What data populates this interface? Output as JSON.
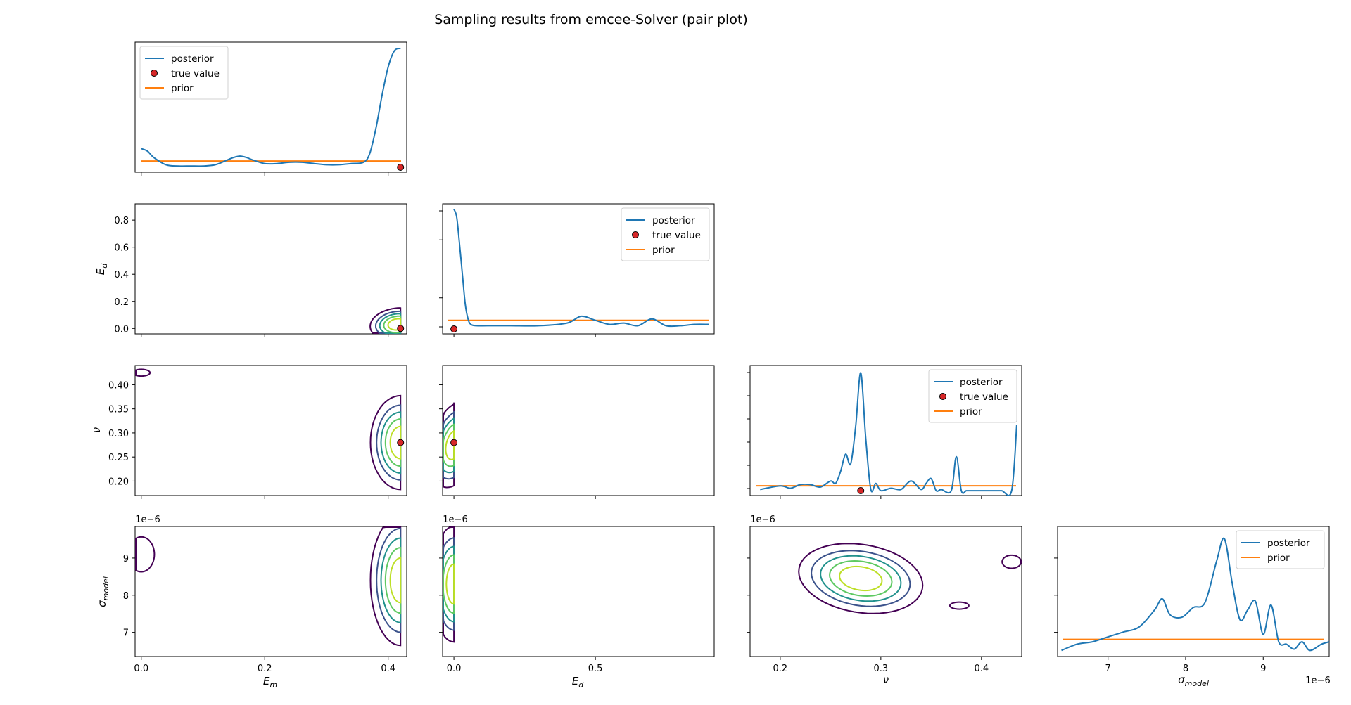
{
  "title": "Sampling results from emcee-Solver (pair plot)",
  "colors": {
    "posterior": "#1f77b4",
    "prior": "#ff7f0e",
    "true_value": "#d62728",
    "axes": "#000000",
    "contour_levels": [
      "#440154",
      "#3b528b",
      "#21918c",
      "#5ec962",
      "#bddf26"
    ]
  },
  "legend_labels": {
    "posterior": "posterior",
    "true_value": "true value",
    "prior": "prior"
  },
  "axis_labels": {
    "Em": "E",
    "Em_sub": "m",
    "Ed": "E",
    "Ed_sub": "d",
    "nu": "ν",
    "sigma": "σ",
    "sigma_sub": "model"
  },
  "offset_text": "1e−6",
  "ticks": {
    "Em": [
      "0.0",
      "0.2",
      "0.4"
    ],
    "Ed_x": [
      "0.0",
      "0.5"
    ],
    "Ed_y": [
      "0.0",
      "0.2",
      "0.4",
      "0.6",
      "0.8"
    ],
    "nu_x": [
      "0.2",
      "0.3",
      "0.4"
    ],
    "nu_y": [
      "0.20",
      "0.25",
      "0.30",
      "0.35",
      "0.40"
    ],
    "sigma_y": [
      "7",
      "8",
      "9"
    ],
    "sigma_x": [
      "7",
      "8",
      "9"
    ]
  },
  "chart_data": {
    "type": "pair-plot",
    "parameters": [
      "E_m",
      "E_d",
      "nu",
      "sigma_model"
    ],
    "true_values": {
      "E_m": 0.42,
      "E_d": 0.0,
      "nu": 0.28
    },
    "ranges": {
      "E_m": [
        -0.01,
        0.43
      ],
      "E_d": [
        -0.04,
        0.92
      ],
      "nu": [
        0.17,
        0.44
      ],
      "sigma_model": [
        6.35e-06,
        9.85e-06
      ]
    },
    "marginals": [
      {
        "param": "E_m",
        "legend": [
          "posterior",
          "true value",
          "prior"
        ],
        "legend_loc": "upper left",
        "ylim": [
          0,
          1.05
        ],
        "prior": 0.09,
        "posterior": {
          "x": [
            0.0,
            0.01,
            0.02,
            0.04,
            0.06,
            0.08,
            0.1,
            0.12,
            0.14,
            0.15,
            0.16,
            0.17,
            0.18,
            0.2,
            0.22,
            0.24,
            0.26,
            0.28,
            0.3,
            0.32,
            0.34,
            0.36,
            0.37,
            0.38,
            0.39,
            0.4,
            0.41,
            0.42
          ],
          "y": [
            0.19,
            0.17,
            0.12,
            0.06,
            0.05,
            0.05,
            0.05,
            0.06,
            0.1,
            0.12,
            0.13,
            0.12,
            0.1,
            0.07,
            0.07,
            0.08,
            0.08,
            0.07,
            0.06,
            0.06,
            0.07,
            0.08,
            0.15,
            0.35,
            0.62,
            0.85,
            0.98,
            1.0
          ]
        }
      },
      {
        "param": "E_d",
        "legend": [
          "posterior",
          "true value",
          "prior"
        ],
        "legend_loc": "upper right",
        "ylim": [
          -0.06,
          0.9
        ],
        "prior": 0.04,
        "posterior": {
          "x": [
            0.0,
            0.01,
            0.02,
            0.03,
            0.04,
            0.05,
            0.06,
            0.08,
            0.12,
            0.2,
            0.3,
            0.4,
            0.45,
            0.5,
            0.55,
            0.6,
            0.65,
            0.7,
            0.75,
            0.8,
            0.85,
            0.9
          ],
          "y": [
            0.86,
            0.8,
            0.6,
            0.38,
            0.16,
            0.05,
            0.01,
            0.0,
            0.0,
            0.0,
            0.0,
            0.02,
            0.07,
            0.04,
            0.01,
            0.02,
            0.0,
            0.05,
            0.0,
            0.0,
            0.01,
            0.01
          ]
        }
      },
      {
        "param": "nu",
        "legend": [
          "posterior",
          "true value",
          "prior"
        ],
        "legend_loc": "upper right",
        "ylim": [
          -0.02,
          1.05
        ],
        "prior": 0.06,
        "posterior": {
          "x": [
            0.18,
            0.2,
            0.21,
            0.22,
            0.23,
            0.24,
            0.25,
            0.255,
            0.26,
            0.265,
            0.27,
            0.275,
            0.28,
            0.285,
            0.29,
            0.295,
            0.3,
            0.31,
            0.32,
            0.33,
            0.34,
            0.345,
            0.35,
            0.355,
            0.36,
            0.37,
            0.375,
            0.38,
            0.385,
            0.39,
            0.4,
            0.41,
            0.42,
            0.43,
            0.435
          ],
          "y": [
            0.03,
            0.06,
            0.04,
            0.07,
            0.07,
            0.05,
            0.1,
            0.08,
            0.18,
            0.32,
            0.24,
            0.55,
            0.99,
            0.45,
            0.03,
            0.08,
            0.02,
            0.04,
            0.03,
            0.1,
            0.03,
            0.08,
            0.12,
            0.02,
            0.03,
            0.02,
            0.3,
            0.02,
            0.02,
            0.02,
            0.02,
            0.02,
            0.02,
            0.02,
            0.56
          ]
        }
      },
      {
        "param": "sigma_model",
        "legend": [
          "posterior",
          "prior"
        ],
        "legend_loc": "upper right",
        "ylim": [
          0,
          1.06
        ],
        "prior": 0.14,
        "posterior": {
          "x": [
            6.4e-06,
            6.6e-06,
            6.8e-06,
            7e-06,
            7.2e-06,
            7.4e-06,
            7.6e-06,
            7.7e-06,
            7.8e-06,
            7.95e-06,
            8.1e-06,
            8.25e-06,
            8.4e-06,
            8.5e-06,
            8.6e-06,
            8.7e-06,
            8.8e-06,
            8.9e-06,
            9e-06,
            9.1e-06,
            9.2e-06,
            9.3e-06,
            9.4e-06,
            9.5e-06,
            9.6e-06,
            9.75e-06,
            9.85e-06
          ],
          "y": [
            0.05,
            0.1,
            0.12,
            0.16,
            0.2,
            0.24,
            0.38,
            0.47,
            0.34,
            0.32,
            0.4,
            0.44,
            0.78,
            0.96,
            0.6,
            0.3,
            0.38,
            0.45,
            0.18,
            0.42,
            0.12,
            0.1,
            0.06,
            0.12,
            0.05,
            0.1,
            0.12
          ]
        }
      }
    ],
    "joint_contours": [
      {
        "x": "E_m",
        "y": "E_d",
        "mode": [
          0.415,
          0.03
        ],
        "spread": [
          0.022,
          0.06
        ],
        "tilt": -0.12,
        "clip_x": 0.42
      },
      {
        "x": "E_m",
        "y": "nu",
        "mode": [
          0.42,
          0.28
        ],
        "spread": [
          0.025,
          0.05
        ],
        "tilt": 0,
        "clip_x": 0.42,
        "extra": {
          "mode": [
            0.0,
            0.425
          ],
          "spread": [
            0.012,
            0.006
          ]
        }
      },
      {
        "x": "E_d",
        "y": "nu",
        "mode": [
          0.0,
          0.275
        ],
        "spread": [
          0.04,
          0.04
        ],
        "tilt": -0.3,
        "clip_x": 0.0
      },
      {
        "x": "E_m",
        "y": "sigma_model",
        "mode": [
          0.42,
          8.4e-06
        ],
        "spread": [
          0.025,
          9e-07
        ],
        "tilt": 0,
        "clip_x": 0.42,
        "extra": {
          "mode": [
            0.0,
            9.1e-06
          ],
          "spread": [
            0.018,
            4e-07
          ]
        }
      },
      {
        "x": "E_d",
        "y": "sigma_model",
        "mode": [
          0.0,
          8.3e-06
        ],
        "spread": [
          0.04,
          8e-07
        ],
        "tilt": 0,
        "clip_x": 0.0
      },
      {
        "x": "nu",
        "y": "sigma_model",
        "mode": [
          0.28,
          8.45e-06
        ],
        "spread": [
          0.03,
          4.5e-07
        ],
        "tilt": 0.2,
        "extra": {
          "mode": [
            0.43,
            8.9e-06
          ],
          "spread": [
            0.008,
            1.5e-07
          ]
        },
        "extra2": {
          "mode": [
            0.378,
            7.72e-06
          ],
          "spread": [
            0.008,
            8e-08
          ]
        }
      }
    ]
  }
}
